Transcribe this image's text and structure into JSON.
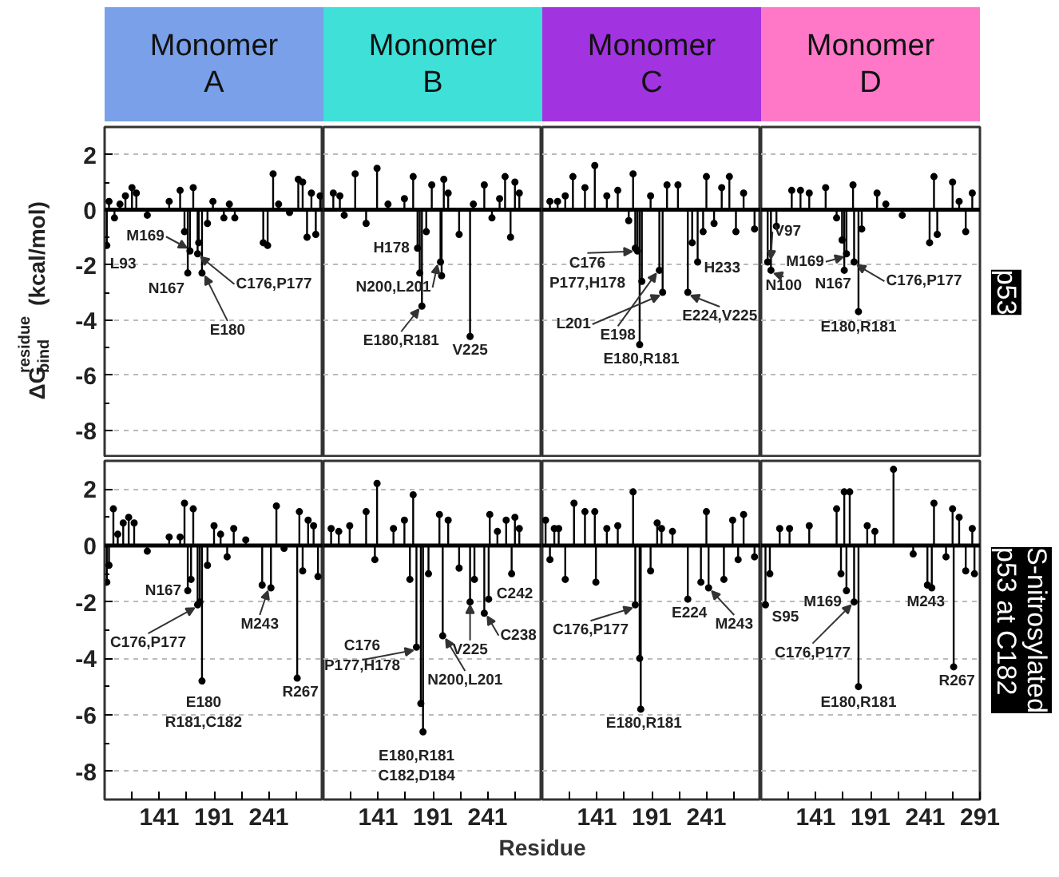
{
  "chart_data": [
    {
      "type": "other",
      "categories": [
        "Monomer\nA",
        "Monomer\nB",
        "Monomer\nC",
        "Monomer\nD"
      ],
      "colors": [
        "#79a0e8",
        "#3ee0d8",
        "#a233e0",
        "#ff78c8"
      ]
    },
    {
      "type": "lollipop",
      "ylabel": "ΔG$^{residue}$$_{bind}$(kcal/mol)",
      "tick_labels": "y",
      "grid": "y",
      "marker": "circle",
      "xlim": [
        91,
        291
      ],
      "ylim": [
        -9,
        3
      ],
      "yticks": [
        -8,
        -6,
        -4,
        -2,
        0,
        2
      ],
      "ref_lines": [
        {
          "axis": "y",
          "value": 0,
          "color": "#000000"
        }
      ],
      "series": [
        {
          "color": "#000000",
          "x": [
            93,
            95,
            100,
            105,
            110,
            116,
            120,
            130,
            150,
            160,
            164,
            167,
            169,
            172,
            176,
            177,
            180,
            185,
            190,
            200,
            205,
            210,
            236,
            240,
            245,
            250,
            260,
            268,
            272,
            276,
            280,
            284,
            288
          ],
          "values": [
            -1.3,
            0.3,
            -0.3,
            0.2,
            0.5,
            0.8,
            0.6,
            -0.2,
            0.3,
            0.7,
            -0.8,
            -2.3,
            -1.5,
            0.8,
            -1.6,
            -1.2,
            -2.3,
            -0.5,
            0.3,
            -0.3,
            0.2,
            -0.3,
            -1.2,
            -1.3,
            1.3,
            0.2,
            -0.1,
            1.1,
            1.0,
            -1.0,
            0.6,
            -0.9,
            0.5
          ]
        }
      ],
      "annotations": [
        {
          "text": "L93",
          "x": 93,
          "y": -1.3
        },
        {
          "text": "M169",
          "x": 169,
          "y": -1.5
        },
        {
          "text": "N167",
          "x": 167,
          "y": -2.3
        },
        {
          "text": "C176,P177",
          "x": 176,
          "y": -1.6
        },
        {
          "text": "E180",
          "x": 180,
          "y": -2.3
        }
      ]
    },
    {
      "type": "lollipop",
      "tick_labels": false,
      "grid": "y",
      "marker": "circle",
      "xlim": [
        91,
        291
      ],
      "ylim": [
        -9,
        3
      ],
      "yticks": [
        -8,
        -6,
        -4,
        -2,
        0,
        2
      ],
      "ref_lines": [
        {
          "axis": "y",
          "value": 0,
          "color": "#000000"
        }
      ],
      "series": [
        {
          "color": "#000000",
          "x": [
            100,
            106,
            110,
            120,
            130,
            140,
            150,
            165,
            173,
            177,
            179,
            181,
            185,
            190,
            198,
            199,
            201,
            205,
            215,
            225,
            228,
            238,
            245,
            252,
            257,
            262,
            266,
            270
          ],
          "values": [
            0.6,
            0.5,
            -0.2,
            1.3,
            -0.5,
            1.5,
            0.2,
            0.4,
            1.2,
            -1.4,
            -2.3,
            -3.5,
            -0.8,
            0.9,
            -1.9,
            -2.4,
            1.1,
            0.6,
            -0.9,
            -4.6,
            0.2,
            0.9,
            -0.3,
            0.4,
            1.2,
            -1.0,
            1.0,
            0.6
          ]
        }
      ],
      "annotations": [
        {
          "text": "H178",
          "x": 177,
          "y": -1.4
        },
        {
          "text": "N200,L201",
          "x": 198,
          "y": -1.9
        },
        {
          "text": "E180,R181",
          "x": 181,
          "y": -3.5
        },
        {
          "text": "V225",
          "x": 225,
          "y": -4.6
        }
      ]
    },
    {
      "type": "lollipop",
      "tick_labels": false,
      "grid": "y",
      "marker": "circle",
      "xlim": [
        91,
        291
      ],
      "ylim": [
        -9,
        3
      ],
      "yticks": [
        -8,
        -6,
        -4,
        -2,
        0,
        2
      ],
      "ref_lines": [
        {
          "axis": "y",
          "value": 0,
          "color": "#000000"
        }
      ],
      "series": [
        {
          "color": "#000000",
          "x": [
            98,
            105,
            112,
            119,
            130,
            139,
            150,
            160,
            170,
            174,
            176,
            178,
            180,
            182,
            190,
            198,
            201,
            205,
            215,
            224,
            228,
            233,
            238,
            241,
            248,
            255,
            262,
            268,
            275,
            285
          ],
          "values": [
            0.3,
            0.3,
            0.5,
            1.2,
            0.8,
            1.6,
            0.5,
            0.7,
            -0.4,
            1.3,
            -1.4,
            -1.5,
            -4.9,
            -2.6,
            0.5,
            -2.2,
            -3.0,
            0.9,
            0.9,
            -3.0,
            -1.2,
            -1.9,
            -0.8,
            1.2,
            -0.5,
            0.8,
            1.2,
            -0.8,
            0.6,
            -0.7
          ]
        }
      ],
      "annotations": [
        {
          "text": "C176\nP177,H178",
          "x": 176,
          "y": -1.4
        },
        {
          "text": "L201",
          "x": 201,
          "y": -3.0
        },
        {
          "text": "E198",
          "x": 198,
          "y": -2.2
        },
        {
          "text": "E180,R181",
          "x": 180,
          "y": -4.9
        },
        {
          "text": "H233",
          "x": 233,
          "y": -1.9
        },
        {
          "text": "E224,V225",
          "x": 224,
          "y": -3.0
        }
      ]
    },
    {
      "type": "lollipop",
      "subtitle": "p53",
      "tick_labels": false,
      "grid": "y",
      "marker": "circle",
      "xlim": [
        91,
        291
      ],
      "ylim": [
        -9,
        3
      ],
      "yticks": [
        -8,
        -6,
        -4,
        -2,
        0,
        2
      ],
      "ref_lines": [
        {
          "axis": "y",
          "value": 0,
          "color": "#000000"
        }
      ],
      "series": [
        {
          "color": "#000000",
          "x": [
            97,
            100,
            105,
            119,
            127,
            135,
            150,
            160,
            165,
            167,
            169,
            175,
            176,
            180,
            183,
            197,
            205,
            220,
            245,
            249,
            252,
            266,
            272,
            278,
            284
          ],
          "values": [
            -1.9,
            -2.2,
            -0.6,
            0.7,
            0.7,
            0.6,
            0.8,
            -0.3,
            -1.1,
            -2.2,
            -1.6,
            0.9,
            -1.9,
            -3.7,
            -0.7,
            0.6,
            0.2,
            -0.2,
            -1.2,
            1.2,
            -0.9,
            1.0,
            0.3,
            -0.8,
            0.6
          ]
        }
      ],
      "annotations": [
        {
          "text": "V97",
          "x": 97,
          "y": -1.9
        },
        {
          "text": "N100",
          "x": 100,
          "y": -2.2
        },
        {
          "text": "M169",
          "x": 169,
          "y": -1.6
        },
        {
          "text": "N167",
          "x": 167,
          "y": -2.2
        },
        {
          "text": "C176,P177",
          "x": 176,
          "y": -1.9
        },
        {
          "text": "E180,R181",
          "x": 180,
          "y": -3.7
        }
      ]
    },
    {
      "type": "lollipop",
      "grid": "y",
      "marker": "circle",
      "xlim": [
        91,
        291
      ],
      "ylim": [
        -9,
        3
      ],
      "yticks": [
        -8,
        -6,
        -4,
        -2,
        0,
        2
      ],
      "xticks": [
        {
          "value": 116,
          "label": null
        },
        {
          "value": 141,
          "label": "141"
        },
        {
          "value": 166,
          "label": null
        },
        {
          "value": 191,
          "label": "191"
        },
        {
          "value": 216,
          "label": null
        },
        {
          "value": 241,
          "label": "241"
        },
        {
          "value": 266,
          "label": null
        }
      ],
      "ref_lines": [
        {
          "axis": "y",
          "value": 0,
          "color": "#000000"
        }
      ],
      "series": [
        {
          "color": "#000000",
          "x": [
            93,
            95,
            99,
            103,
            108,
            113,
            118,
            130,
            150,
            160,
            164,
            167,
            170,
            172,
            176,
            178,
            180,
            185,
            191,
            197,
            203,
            209,
            220,
            235,
            243,
            248,
            255,
            267,
            269,
            272,
            277,
            282,
            286
          ],
          "values": [
            -1.3,
            -0.7,
            1.3,
            0.4,
            0.8,
            1.0,
            0.8,
            -0.2,
            0.3,
            0.3,
            1.5,
            -1.6,
            -1.2,
            1.3,
            -2.1,
            -2.0,
            -4.8,
            -0.7,
            0.7,
            0.4,
            -0.4,
            0.6,
            0.2,
            -1.4,
            -1.5,
            1.4,
            -0.1,
            -4.7,
            1.2,
            -0.9,
            0.9,
            0.7,
            -1.1
          ]
        }
      ],
      "annotations": [
        {
          "text": "N167",
          "x": 167,
          "y": -1.6
        },
        {
          "text": "C176,P177",
          "x": 176,
          "y": -2.1
        },
        {
          "text": "E180\nR181,C182",
          "x": 180,
          "y": -4.8
        },
        {
          "text": "M243",
          "x": 243,
          "y": -1.5
        },
        {
          "text": "R267",
          "x": 267,
          "y": -4.7
        }
      ]
    },
    {
      "type": "lollipop",
      "xlabel": "Residue",
      "tick_labels": "x",
      "grid": "y",
      "marker": "circle",
      "xlim": [
        91,
        291
      ],
      "ylim": [
        -9,
        3
      ],
      "yticks": [
        -8,
        -6,
        -4,
        -2,
        0,
        2
      ],
      "xticks": [
        {
          "value": 116,
          "label": null
        },
        {
          "value": 141,
          "label": "141"
        },
        {
          "value": 166,
          "label": null
        },
        {
          "value": 191,
          "label": "191"
        },
        {
          "value": 216,
          "label": null
        },
        {
          "value": 241,
          "label": "241"
        },
        {
          "value": 266,
          "label": null
        }
      ],
      "ref_lines": [
        {
          "axis": "y",
          "value": 0,
          "color": "#000000"
        }
      ],
      "series": [
        {
          "color": "#000000",
          "x": [
            98,
            105,
            115,
            130,
            138,
            140,
            155,
            165,
            170,
            173,
            176,
            180,
            182,
            187,
            197,
            200,
            205,
            215,
            225,
            229,
            238,
            242,
            243,
            250,
            258,
            263,
            266,
            270
          ],
          "values": [
            0.6,
            0.5,
            0.7,
            1.2,
            -0.5,
            2.2,
            0.6,
            0.9,
            -1.2,
            1.8,
            -3.6,
            -5.6,
            -6.6,
            -1.0,
            1.1,
            -3.2,
            0.9,
            -0.8,
            -2.0,
            -1.2,
            -2.4,
            -1.9,
            1.1,
            0.5,
            0.9,
            -1.0,
            1.0,
            0.6
          ]
        }
      ],
      "annotations": [
        {
          "text": "C176\nP177,H178",
          "x": 176,
          "y": -3.6
        },
        {
          "text": "E180,R181\nC182,D184",
          "x": 182,
          "y": -6.6
        },
        {
          "text": "N200,L201",
          "x": 200,
          "y": -3.2
        },
        {
          "text": "V225",
          "x": 225,
          "y": -2.0
        },
        {
          "text": "C238",
          "x": 238,
          "y": -2.4
        },
        {
          "text": "C242",
          "x": 242,
          "y": -1.9
        }
      ]
    },
    {
      "type": "lollipop",
      "tick_labels": "x",
      "grid": "y",
      "marker": "circle",
      "xlim": [
        91,
        291
      ],
      "ylim": [
        -9,
        3
      ],
      "yticks": [
        -8,
        -6,
        -4,
        -2,
        0,
        2
      ],
      "xticks": [
        {
          "value": 116,
          "label": null
        },
        {
          "value": 141,
          "label": "141"
        },
        {
          "value": 166,
          "label": null
        },
        {
          "value": 191,
          "label": "191"
        },
        {
          "value": 216,
          "label": null
        },
        {
          "value": 241,
          "label": "241"
        },
        {
          "value": 266,
          "label": null
        }
      ],
      "ref_lines": [
        {
          "axis": "y",
          "value": 0,
          "color": "#000000"
        }
      ],
      "series": [
        {
          "color": "#000000",
          "x": [
            94,
            98,
            102,
            106,
            112,
            120,
            130,
            139,
            140,
            150,
            160,
            174,
            176,
            180,
            181,
            190,
            196,
            200,
            210,
            224,
            236,
            241,
            243,
            257,
            265,
            270,
            275,
            285
          ],
          "values": [
            0.9,
            -0.5,
            0.6,
            0.6,
            -1.2,
            1.5,
            1.2,
            1.2,
            -1.3,
            0.6,
            0.7,
            1.9,
            -2.1,
            -4.0,
            -5.8,
            -0.9,
            0.8,
            0.6,
            0.5,
            -1.9,
            -1.3,
            1.2,
            -1.5,
            -1.2,
            0.9,
            -0.5,
            1.1,
            -0.4
          ]
        }
      ],
      "annotations": [
        {
          "text": "C176,P177",
          "x": 176,
          "y": -2.1
        },
        {
          "text": "E180,R181",
          "x": 181,
          "y": -5.8
        },
        {
          "text": "E224",
          "x": 224,
          "y": -1.9
        },
        {
          "text": "M243",
          "x": 243,
          "y": -1.5
        }
      ]
    },
    {
      "type": "lollipop",
      "subtitle": "S-nitrosylated\np53 at C182",
      "tick_labels": "x",
      "grid": "y",
      "marker": "circle",
      "xlim": [
        91,
        291
      ],
      "ylim": [
        -9,
        3
      ],
      "yticks": [
        -8,
        -6,
        -4,
        -2,
        0,
        2
      ],
      "xticks": [
        {
          "value": 116,
          "label": null
        },
        {
          "value": 141,
          "label": "141"
        },
        {
          "value": 166,
          "label": null
        },
        {
          "value": 191,
          "label": "191"
        },
        {
          "value": 216,
          "label": null
        },
        {
          "value": 241,
          "label": "241"
        },
        {
          "value": 266,
          "label": null
        },
        {
          "value": 291,
          "label": "291"
        }
      ],
      "ref_lines": [
        {
          "axis": "y",
          "value": 0,
          "color": "#000000"
        }
      ],
      "series": [
        {
          "color": "#000000",
          "x": [
            95,
            99,
            108,
            117,
            135,
            160,
            164,
            167,
            169,
            172,
            176,
            180,
            188,
            195,
            212,
            230,
            243,
            247,
            249,
            260,
            266,
            267,
            272,
            278,
            284,
            286
          ],
          "values": [
            -2.1,
            -1.0,
            0.6,
            0.6,
            0.7,
            1.3,
            -1.0,
            1.9,
            -1.6,
            1.9,
            -2.0,
            -5.0,
            0.7,
            0.5,
            2.7,
            -0.3,
            -1.4,
            -1.5,
            1.5,
            -0.4,
            1.3,
            -4.3,
            1.0,
            -0.9,
            0.6,
            -1.0
          ]
        }
      ],
      "annotations": [
        {
          "text": "S95",
          "x": 95,
          "y": -2.1
        },
        {
          "text": "M169",
          "x": 169,
          "y": -1.6
        },
        {
          "text": "C176,P177",
          "x": 176,
          "y": -2.0
        },
        {
          "text": "E180,R181",
          "x": 180,
          "y": -5.0
        },
        {
          "text": "M243",
          "x": 243,
          "y": -1.4
        },
        {
          "text": "R267",
          "x": 267,
          "y": -4.3
        }
      ]
    }
  ]
}
